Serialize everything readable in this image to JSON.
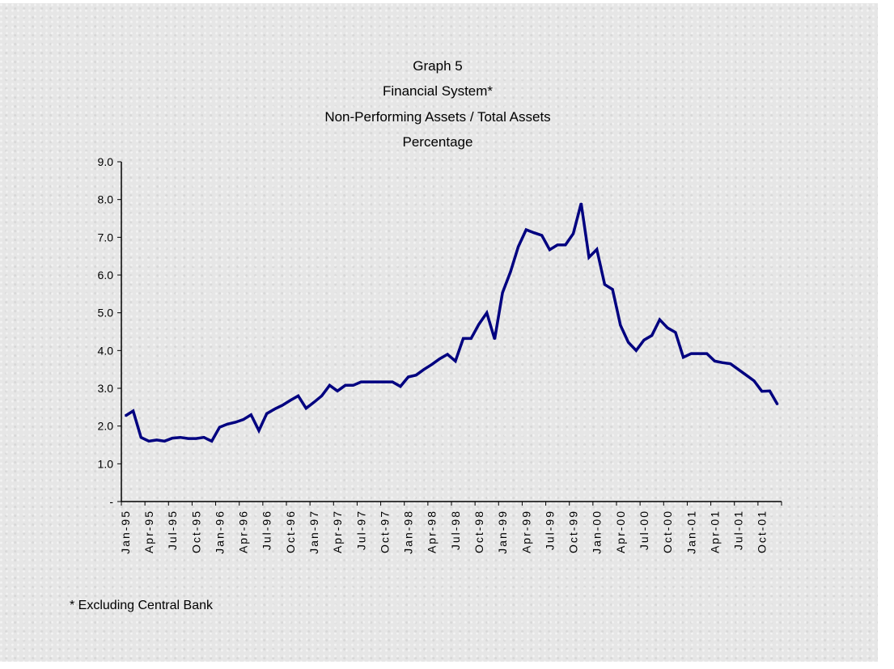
{
  "chart_data": {
    "type": "line",
    "title_lines": [
      "Graph 5",
      "Financial System*",
      "Non-Performing Assets / Total Assets",
      "Percentage"
    ],
    "xlabel": "",
    "ylabel": "",
    "ylim": [
      0,
      9
    ],
    "yticks": [
      0,
      1,
      2,
      3,
      4,
      5,
      6,
      7,
      8,
      9
    ],
    "ytick_labels": [
      "-",
      "1.0",
      "2.0",
      "3.0",
      "4.0",
      "5.0",
      "6.0",
      "7.0",
      "8.0",
      "9.0"
    ],
    "xtick_labels": [
      "Jan-95",
      "Apr-95",
      "Jul-95",
      "Oct-95",
      "Jan-96",
      "Apr-96",
      "Jul-96",
      "Oct-96",
      "Jan-97",
      "Apr-97",
      "Jul-97",
      "Oct-97",
      "Jan-98",
      "Apr-98",
      "Jul-98",
      "Oct-98",
      "Jan-99",
      "Apr-99",
      "Jul-99",
      "Oct-99",
      "Jan-00",
      "Apr-00",
      "Jul-00",
      "Oct-00",
      "Jan-01",
      "Apr-01",
      "Jul-01",
      "Oct-01"
    ],
    "x_start": "Jan-95",
    "frequency": "monthly",
    "grid": false,
    "series": [
      {
        "name": "Non-Performing Assets / Total Assets",
        "color": "#000080",
        "values": [
          2.27,
          2.4,
          1.7,
          1.6,
          1.63,
          1.6,
          1.68,
          1.7,
          1.67,
          1.67,
          1.7,
          1.6,
          1.97,
          2.05,
          2.1,
          2.17,
          2.3,
          1.88,
          2.33,
          2.45,
          2.55,
          2.68,
          2.8,
          2.47,
          2.63,
          2.8,
          3.08,
          2.93,
          3.08,
          3.08,
          3.17,
          3.17,
          3.17,
          3.17,
          3.17,
          3.05,
          3.3,
          3.35,
          3.5,
          3.63,
          3.78,
          3.9,
          3.72,
          4.32,
          4.32,
          4.7,
          5.0,
          4.3,
          5.53,
          6.08,
          6.75,
          7.2,
          7.12,
          7.05,
          6.67,
          6.8,
          6.8,
          7.1,
          7.9,
          6.47,
          6.68,
          5.75,
          5.62,
          4.67,
          4.22,
          4.0,
          4.28,
          4.4,
          4.82,
          4.6,
          4.48,
          3.82,
          3.92,
          3.92,
          3.92,
          3.72,
          3.68,
          3.65,
          3.5,
          3.35,
          3.2,
          2.92,
          2.93,
          2.57
        ]
      }
    ],
    "footnote": "* Excluding Central Bank"
  }
}
